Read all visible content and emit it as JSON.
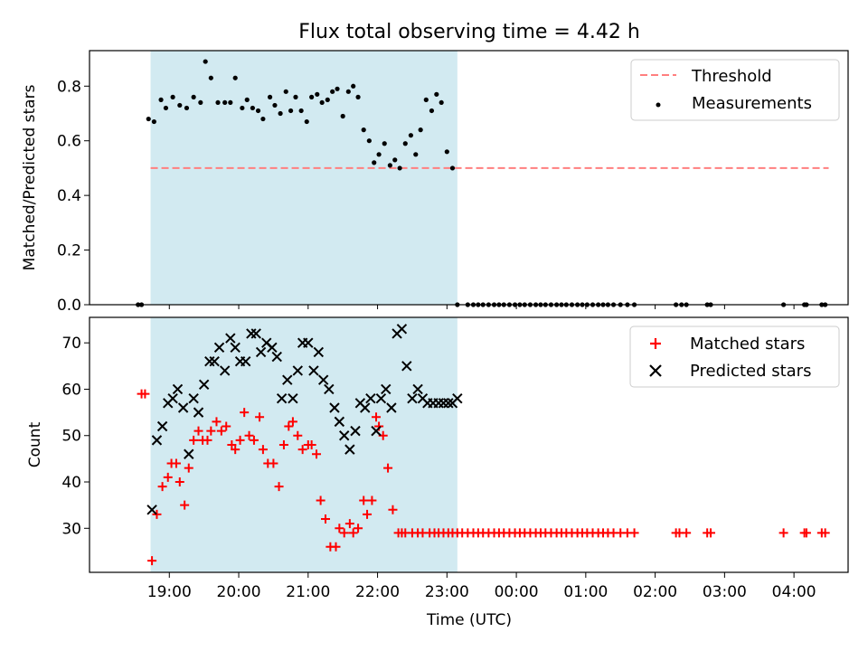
{
  "title": "Flux total observing time = 4.42 h",
  "colors": {
    "highlight": "#add8e6",
    "threshold": "#ff7f7f",
    "measurement": "#000000",
    "matched": "#ff0000",
    "predicted": "#000000"
  },
  "chart_data": [
    {
      "type": "scatter",
      "ylabel": "Matched/Predicted stars",
      "ylim": [
        0,
        0.93
      ],
      "yticks": [
        "0.0",
        "0.2",
        "0.4",
        "0.6",
        "0.8"
      ],
      "yticks_values": [
        0,
        0.2,
        0.4,
        0.6,
        0.8
      ],
      "xlim": [
        -1.15,
        9.78
      ],
      "highlight_span_hours": [
        -0.27,
        4.15
      ],
      "legend_placement": "top-right",
      "legend": [
        "Threshold",
        "Measurements"
      ],
      "threshold": {
        "name": "Threshold",
        "value": 0.5,
        "x_range": [
          -0.27,
          9.5
        ]
      },
      "series": [
        {
          "name": "Measurements",
          "x": [
            -0.45,
            -0.4,
            -0.3,
            -0.22,
            -0.12,
            -0.05,
            0.05,
            0.15,
            0.25,
            0.35,
            0.45,
            0.52,
            0.6,
            0.7,
            0.8,
            0.88,
            0.95,
            1.05,
            1.12,
            1.2,
            1.28,
            1.35,
            1.45,
            1.52,
            1.6,
            1.68,
            1.75,
            1.82,
            1.9,
            1.98,
            2.05,
            2.13,
            2.2,
            2.28,
            2.35,
            2.42,
            2.5,
            2.58,
            2.65,
            2.72,
            2.8,
            2.88,
            2.95,
            3.02,
            3.1,
            3.18,
            3.25,
            3.32,
            3.4,
            3.48,
            3.55,
            3.62,
            3.7,
            3.78,
            3.85,
            3.92,
            4.0,
            4.08,
            4.15,
            4.3,
            4.38,
            4.45,
            4.52,
            4.6,
            4.68,
            4.75,
            4.82,
            4.9,
            4.98,
            5.05,
            5.12,
            5.2,
            5.28,
            5.35,
            5.42,
            5.5,
            5.58,
            5.65,
            5.72,
            5.8,
            5.88,
            5.95,
            6.02,
            6.1,
            6.18,
            6.25,
            6.32,
            6.4,
            6.5,
            6.6,
            6.7,
            7.3,
            7.38,
            7.45,
            7.75,
            7.8,
            8.85,
            9.15,
            9.18,
            9.4,
            9.45
          ],
          "y": [
            0,
            0,
            0.68,
            0.67,
            0.75,
            0.72,
            0.76,
            0.73,
            0.72,
            0.76,
            0.74,
            0.89,
            0.83,
            0.74,
            0.74,
            0.74,
            0.83,
            0.72,
            0.75,
            0.72,
            0.71,
            0.68,
            0.76,
            0.73,
            0.7,
            0.78,
            0.71,
            0.76,
            0.71,
            0.67,
            0.76,
            0.77,
            0.74,
            0.75,
            0.78,
            0.79,
            0.69,
            0.78,
            0.8,
            0.76,
            0.64,
            0.6,
            0.52,
            0.55,
            0.59,
            0.51,
            0.53,
            0.5,
            0.59,
            0.62,
            0.55,
            0.64,
            0.75,
            0.71,
            0.77,
            0.74,
            0.56,
            0.5,
            0,
            0,
            0,
            0,
            0,
            0,
            0,
            0,
            0,
            0,
            0,
            0,
            0,
            0,
            0,
            0,
            0,
            0,
            0,
            0,
            0,
            0,
            0,
            0,
            0,
            0,
            0,
            0,
            0,
            0,
            0,
            0,
            0,
            0,
            0,
            0,
            0,
            0,
            0,
            0,
            0,
            0,
            0
          ]
        }
      ]
    },
    {
      "type": "scatter",
      "xlabel": "Time (UTC)",
      "ylabel": "Count",
      "ylim": [
        20.5,
        75.5
      ],
      "yticks": [
        "30",
        "40",
        "50",
        "60",
        "70"
      ],
      "yticks_values": [
        30,
        40,
        50,
        60,
        70
      ],
      "xlim": [
        -1.15,
        9.78
      ],
      "xticks": [
        "19:00",
        "20:00",
        "21:00",
        "22:00",
        "23:00",
        "00:00",
        "01:00",
        "02:00",
        "03:00",
        "04:00"
      ],
      "xticks_values": [
        0,
        1,
        2,
        3,
        4,
        5,
        6,
        7,
        8,
        9
      ],
      "highlight_span_hours": [
        -0.27,
        4.15
      ],
      "legend_placement": "top-right",
      "legend": [
        "Matched stars",
        "Predicted stars"
      ],
      "series": [
        {
          "name": "Matched stars",
          "x": [
            -0.4,
            -0.35,
            -0.25,
            -0.18,
            -0.1,
            -0.02,
            0.03,
            0.1,
            0.15,
            0.22,
            0.28,
            0.35,
            0.42,
            0.48,
            0.55,
            0.6,
            0.68,
            0.75,
            0.82,
            0.9,
            0.95,
            1.02,
            1.08,
            1.15,
            1.22,
            1.3,
            1.35,
            1.42,
            1.5,
            1.58,
            1.65,
            1.72,
            1.78,
            1.85,
            1.92,
            2.0,
            2.05,
            2.12,
            2.18,
            2.25,
            2.32,
            2.4,
            2.45,
            2.52,
            2.6,
            2.65,
            2.72,
            2.8,
            2.85,
            2.92,
            2.98,
            3.02,
            3.08,
            3.15,
            3.22,
            3.3,
            3.35,
            3.4,
            3.5,
            3.58,
            3.65,
            3.75,
            3.82,
            3.88,
            3.95,
            4.02,
            4.08,
            4.15,
            4.22,
            4.3,
            4.38,
            4.45,
            4.52,
            4.6,
            4.68,
            4.75,
            4.82,
            4.9,
            4.98,
            5.05,
            5.12,
            5.2,
            5.28,
            5.35,
            5.42,
            5.5,
            5.58,
            5.65,
            5.72,
            5.8,
            5.88,
            5.95,
            6.02,
            6.1,
            6.18,
            6.25,
            6.32,
            6.4,
            6.5,
            6.6,
            6.7,
            7.3,
            7.35,
            7.45,
            7.75,
            7.8,
            8.85,
            9.15,
            9.18,
            9.4,
            9.45
          ],
          "y": [
            59,
            59,
            23,
            33,
            39,
            41,
            44,
            44,
            40,
            35,
            43,
            49,
            51,
            49,
            49,
            51,
            53,
            51,
            52,
            48,
            47,
            49,
            55,
            50,
            49,
            54,
            47,
            44,
            44,
            39,
            48,
            52,
            53,
            50,
            47,
            48,
            48,
            46,
            36,
            32,
            26,
            26,
            30,
            29,
            31,
            29,
            30,
            36,
            33,
            36,
            54,
            52,
            50,
            43,
            34,
            29,
            29,
            29,
            29,
            29,
            29,
            29,
            29,
            29,
            29,
            29,
            29,
            29,
            29,
            29,
            29,
            29,
            29,
            29,
            29,
            29,
            29,
            29,
            29,
            29,
            29,
            29,
            29,
            29,
            29,
            29,
            29,
            29,
            29,
            29,
            29,
            29,
            29,
            29,
            29,
            29,
            29,
            29,
            29,
            29,
            29,
            29,
            29,
            29,
            29,
            29,
            29,
            29,
            29,
            29,
            29
          ]
        },
        {
          "name": "Predicted stars",
          "x": [
            -0.25,
            -0.18,
            -0.1,
            -0.02,
            0.05,
            0.12,
            0.2,
            0.28,
            0.35,
            0.42,
            0.5,
            0.58,
            0.65,
            0.72,
            0.8,
            0.88,
            0.95,
            1.02,
            1.1,
            1.18,
            1.25,
            1.32,
            1.4,
            1.48,
            1.55,
            1.62,
            1.7,
            1.78,
            1.85,
            1.92,
            2.0,
            2.08,
            2.15,
            2.22,
            2.3,
            2.38,
            2.45,
            2.52,
            2.6,
            2.68,
            2.75,
            2.82,
            2.9,
            2.98,
            3.05,
            3.12,
            3.2,
            3.28,
            3.35,
            3.42,
            3.5,
            3.58,
            3.65,
            3.72,
            3.8,
            3.88,
            3.95,
            4.02,
            4.08,
            4.15
          ],
          "y": [
            34,
            49,
            52,
            57,
            58,
            60,
            56,
            46,
            58,
            55,
            61,
            66,
            66,
            69,
            64,
            71,
            69,
            66,
            66,
            72,
            72,
            68,
            70,
            69,
            67,
            58,
            62,
            58,
            64,
            70,
            70,
            64,
            68,
            62,
            60,
            56,
            53,
            50,
            47,
            51,
            57,
            56,
            58,
            51,
            58,
            60,
            56,
            72,
            73,
            65,
            58,
            60,
            58,
            57,
            57,
            57,
            57,
            57,
            57,
            58
          ]
        }
      ]
    }
  ]
}
